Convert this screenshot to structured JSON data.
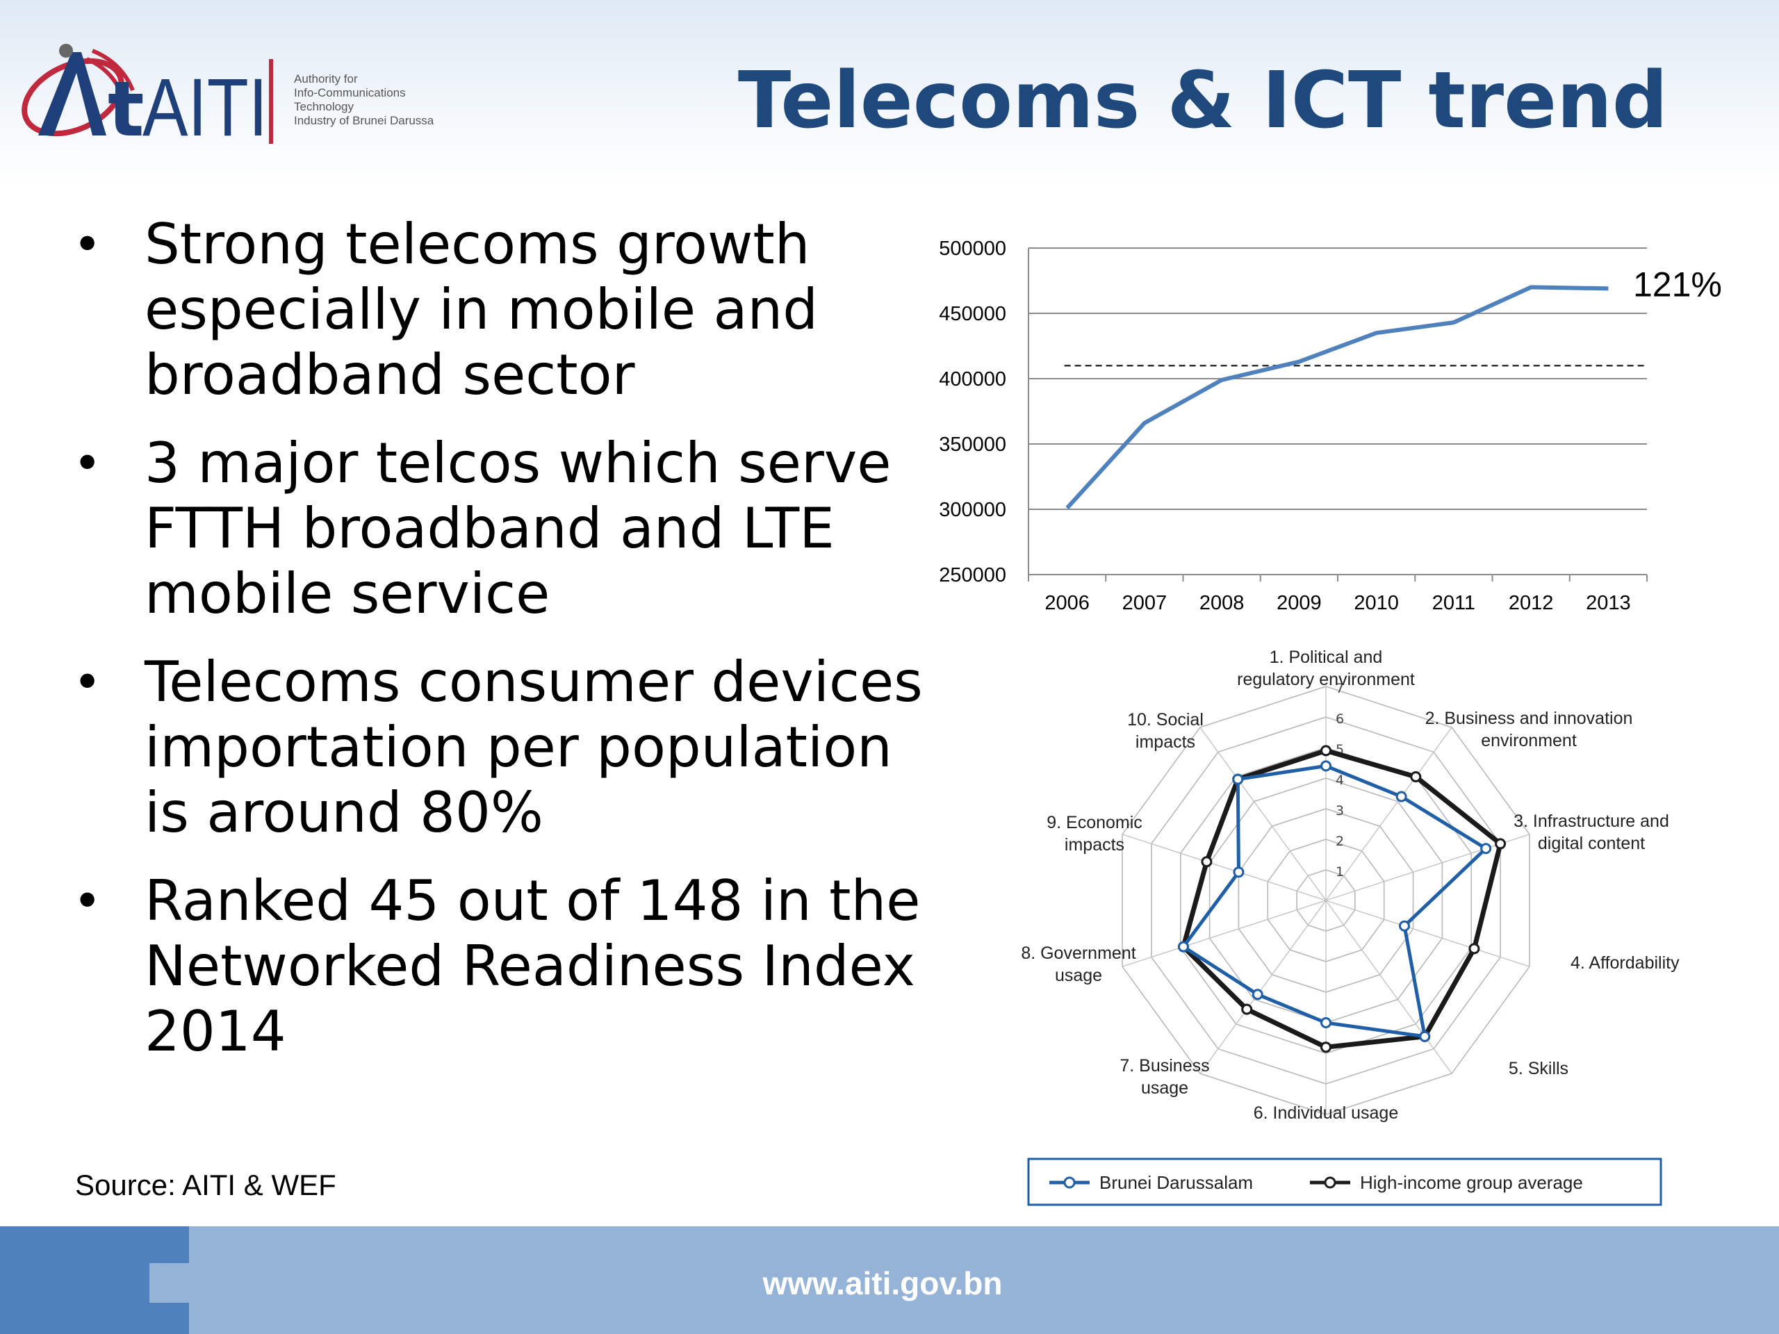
{
  "slide": {
    "title": "Telecoms & ICT trend",
    "logo": {
      "text": "AITI",
      "tagline": [
        "Authority for",
        "Info-Communications",
        "Technology",
        "Industry of Brunei Darussalam"
      ]
    },
    "bullets": [
      "Strong telecoms growth especially in mobile and broadband sector",
      "3 major telcos which serve FTTH broadband and LTE mobile service",
      "Telecoms consumer devices importation per population is around 80%",
      "Ranked 45 out of 148 in the Networked Readiness Index 2014"
    ],
    "source": "Source: AITI & WEF",
    "footer_url": "www.aiti.gov.bn"
  },
  "colors": {
    "title": "#1f497d",
    "line_series": "#4f81bd",
    "brunei": "#1f5fa8",
    "high_income": "#1a1a1a",
    "footer_light": "#95b3d7",
    "footer_dark": "#4f81bd"
  },
  "chart_data": [
    {
      "type": "line",
      "categories": [
        "2006",
        "2007",
        "2008",
        "2009",
        "2010",
        "2011",
        "2012",
        "2013"
      ],
      "series": [
        {
          "values": [
            301000,
            366000,
            399000,
            413000,
            435000,
            443000,
            470000,
            469000
          ]
        }
      ],
      "reference_line": {
        "value": 410000,
        "style": "dashed"
      },
      "annotation": "121%",
      "yticks": [
        "500000",
        "450000",
        "400000",
        "350000",
        "300000",
        "250000"
      ],
      "ylim": [
        250000,
        500000
      ],
      "grid": true
    },
    {
      "type": "radar",
      "axes": [
        [
          "1. Political and",
          "regulatory environment"
        ],
        [
          "2. Business and innovation",
          "environment"
        ],
        [
          "3. Infrastructure and",
          "digital content"
        ],
        [
          "4. Affordability"
        ],
        [
          "5. Skills"
        ],
        [
          "6. Individual usage"
        ],
        [
          "7. Business",
          "usage"
        ],
        [
          "8. Government",
          "usage"
        ],
        [
          "9. Economic",
          "impacts"
        ],
        [
          "10. Social",
          "impacts"
        ]
      ],
      "rlim": [
        0,
        7
      ],
      "ticks": [
        "1",
        "2",
        "3",
        "4",
        "5",
        "6",
        "7"
      ],
      "series": [
        {
          "name": "Brunei Darussalam",
          "values": [
            4.4,
            4.2,
            5.5,
            2.7,
            5.5,
            4.0,
            3.8,
            4.9,
            3.0,
            4.9
          ]
        },
        {
          "name": "High-income group average",
          "values": [
            4.9,
            5.0,
            6.0,
            5.1,
            5.5,
            4.8,
            4.4,
            4.9,
            4.1,
            4.9
          ]
        }
      ],
      "legend_position": "bottom"
    }
  ]
}
